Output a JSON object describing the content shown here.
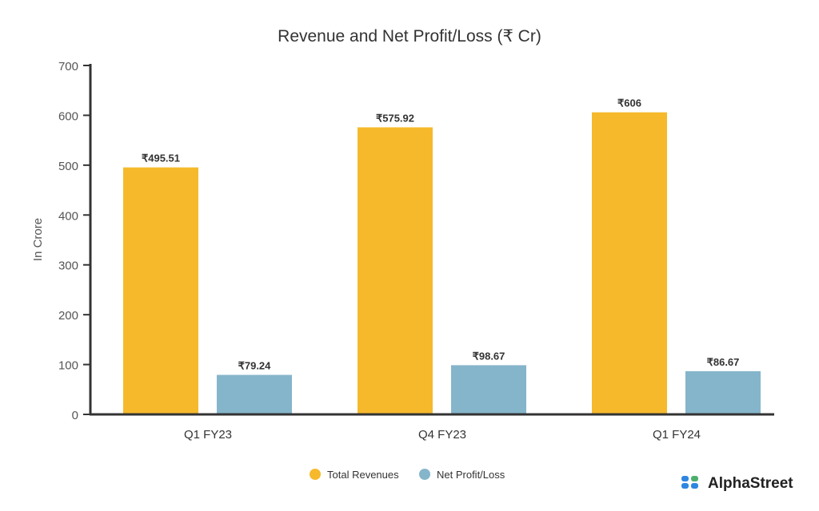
{
  "chart_data": {
    "type": "bar",
    "title": "Revenue and Net Profit/Loss (₹ Cr)",
    "xlabel": "",
    "ylabel": "In Crore",
    "ylim": [
      0,
      700
    ],
    "yticks": [
      0,
      100,
      200,
      300,
      400,
      500,
      600,
      700
    ],
    "categories": [
      "Q1 FY23",
      "Q4 FY23",
      "Q1 FY24"
    ],
    "series": [
      {
        "name": "Total Revenues",
        "color": "#F6B92B",
        "values": [
          495.51,
          575.92,
          606
        ],
        "labels": [
          "₹495.51",
          "₹575.92",
          "₹606"
        ]
      },
      {
        "name": "Net Profit/Loss",
        "color": "#85B5CA",
        "values": [
          79.24,
          98.67,
          86.67
        ],
        "labels": [
          "₹79.24",
          "₹98.67",
          "₹86.67"
        ]
      }
    ],
    "legend": "bottom-center",
    "grid": false
  },
  "brand": {
    "name": "AlphaStreet"
  }
}
